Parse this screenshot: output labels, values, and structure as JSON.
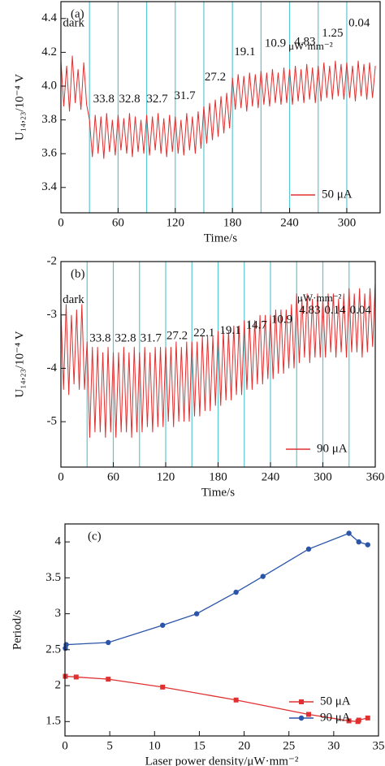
{
  "chart_data": [
    {
      "type": "line",
      "panel": "(a)",
      "xlabel": "Time/s",
      "ylabel": "U₁₄,₂₃/10⁻⁴ V",
      "xlim": [
        0,
        335
      ],
      "xticks": [
        0,
        60,
        120,
        180,
        240,
        300
      ],
      "ylim": [
        3.25,
        4.5
      ],
      "yticks": [
        {
          "value": 3.4,
          "label": "3.4"
        },
        {
          "value": 3.6,
          "label": "3.6"
        },
        {
          "value": 3.8,
          "label": "3.8"
        },
        {
          "value": 4.0,
          "label": "4.0"
        },
        {
          "value": 4.2,
          "label": "4.2"
        },
        {
          "value": 4.4,
          "label": "4.4"
        }
      ],
      "vlines": [
        30,
        60,
        90,
        120,
        150,
        180,
        210,
        240,
        270,
        300
      ],
      "vline_color": "#5bc8d0",
      "legend": "lower right",
      "x": [
        0,
        3,
        6,
        9,
        12,
        15,
        18,
        21,
        24,
        27,
        30,
        33,
        36,
        39,
        42,
        45,
        48,
        51,
        54,
        57,
        60,
        63,
        66,
        69,
        72,
        75,
        78,
        81,
        84,
        87,
        90,
        93,
        96,
        99,
        102,
        105,
        108,
        111,
        114,
        117,
        120,
        123,
        126,
        129,
        132,
        135,
        138,
        141,
        144,
        147,
        150,
        153,
        156,
        159,
        162,
        165,
        168,
        171,
        174,
        177,
        180,
        183,
        186,
        189,
        192,
        195,
        198,
        201,
        204,
        207,
        210,
        213,
        216,
        219,
        222,
        225,
        228,
        231,
        234,
        237,
        240,
        243,
        246,
        249,
        252,
        255,
        258,
        261,
        264,
        267,
        270,
        273,
        276,
        279,
        282,
        285,
        288,
        291,
        294,
        297,
        300,
        303,
        306,
        309,
        312,
        315,
        318,
        321,
        324,
        327,
        330
      ],
      "series": [
        {
          "name": "50 μA",
          "color": "#e03030",
          "values": [
            4.15,
            3.88,
            4.12,
            3.85,
            4.18,
            3.9,
            4.1,
            3.86,
            4.14,
            3.89,
            3.8,
            3.58,
            3.83,
            3.6,
            3.82,
            3.57,
            3.84,
            3.61,
            3.8,
            3.59,
            3.83,
            3.62,
            3.81,
            3.6,
            3.84,
            3.58,
            3.82,
            3.61,
            3.8,
            3.6,
            3.83,
            3.59,
            3.82,
            3.62,
            3.84,
            3.6,
            3.81,
            3.58,
            3.83,
            3.61,
            3.82,
            3.6,
            3.8,
            3.59,
            3.84,
            3.62,
            3.82,
            3.6,
            3.85,
            3.63,
            3.88,
            3.66,
            3.9,
            3.68,
            3.92,
            3.7,
            3.94,
            3.72,
            3.96,
            3.75,
            4.05,
            3.86,
            4.07,
            3.87,
            4.06,
            3.85,
            4.08,
            3.88,
            4.07,
            3.87,
            4.09,
            3.89,
            4.08,
            3.88,
            4.1,
            3.9,
            4.08,
            3.89,
            4.11,
            3.9,
            4.1,
            3.89,
            4.12,
            3.91,
            4.1,
            3.9,
            4.13,
            3.92,
            4.11,
            3.9,
            4.12,
            3.91,
            4.14,
            3.93,
            4.12,
            3.92,
            4.15,
            3.94,
            4.13,
            3.92,
            4.14,
            3.93,
            4.12,
            3.91,
            4.15,
            3.94,
            4.13,
            3.92,
            4.14,
            3.93,
            4.12
          ]
        }
      ],
      "annotations": [
        {
          "text": "dark",
          "x": 2,
          "y": 4.37
        },
        {
          "text": "33.8",
          "x": 45,
          "y": 3.92
        },
        {
          "text": "32.8",
          "x": 72,
          "y": 3.92
        },
        {
          "text": "32.7",
          "x": 101,
          "y": 3.92
        },
        {
          "text": "31.7",
          "x": 130,
          "y": 3.94
        },
        {
          "text": "27.2",
          "x": 162,
          "y": 4.05
        },
        {
          "text": "19.1",
          "x": 193,
          "y": 4.2
        },
        {
          "text": "10.9",
          "x": 225,
          "y": 4.25
        },
        {
          "text": "4.83",
          "x": 256,
          "y": 4.26
        },
        {
          "text": "1.25",
          "x": 285,
          "y": 4.31
        },
        {
          "text": "0.04",
          "x": 313,
          "y": 4.37
        },
        {
          "text": "μW·mm⁻²",
          "x": 262,
          "y": 4.23
        }
      ]
    },
    {
      "type": "line",
      "panel": "(b)",
      "xlabel": "Time/s",
      "ylabel": "U₁₄,₂₃/10⁻⁴ V",
      "xlim": [
        0,
        360
      ],
      "xticks": [
        0,
        60,
        120,
        180,
        240,
        300,
        360
      ],
      "ylim": [
        -5.85,
        -2
      ],
      "yticks": [
        -5,
        -4,
        -3,
        -2
      ],
      "vlines": [
        30,
        60,
        90,
        120,
        150,
        180,
        210,
        240,
        270,
        300,
        330
      ],
      "vline_color": "#5bc8d0",
      "legend": "lower right",
      "x": [
        0,
        3,
        6,
        9,
        12,
        15,
        18,
        21,
        24,
        27,
        30,
        33,
        36,
        39,
        42,
        45,
        48,
        51,
        54,
        57,
        60,
        63,
        66,
        69,
        72,
        75,
        78,
        81,
        84,
        87,
        90,
        93,
        96,
        99,
        102,
        105,
        108,
        111,
        114,
        117,
        120,
        123,
        126,
        129,
        132,
        135,
        138,
        141,
        144,
        147,
        150,
        153,
        156,
        159,
        162,
        165,
        168,
        171,
        174,
        177,
        180,
        183,
        186,
        189,
        192,
        195,
        198,
        201,
        204,
        207,
        210,
        213,
        216,
        219,
        222,
        225,
        228,
        231,
        234,
        237,
        240,
        243,
        246,
        249,
        252,
        255,
        258,
        261,
        264,
        267,
        270,
        273,
        276,
        279,
        282,
        285,
        288,
        291,
        294,
        297,
        300,
        303,
        306,
        309,
        312,
        315,
        318,
        321,
        324,
        327,
        330,
        333,
        336,
        339,
        342,
        345,
        348,
        351,
        354,
        357,
        360
      ],
      "series": [
        {
          "name": "90 μA",
          "color": "#e03030",
          "values": [
            -2.9,
            -4.4,
            -2.8,
            -4.5,
            -3.0,
            -4.3,
            -2.9,
            -4.4,
            -2.8,
            -4.4,
            -3.5,
            -5.3,
            -3.6,
            -5.2,
            -3.6,
            -5.2,
            -3.7,
            -5.3,
            -3.6,
            -5.2,
            -3.7,
            -5.3,
            -3.7,
            -5.2,
            -3.6,
            -5.2,
            -3.7,
            -5.3,
            -3.6,
            -5.2,
            -3.7,
            -5.2,
            -3.6,
            -5.1,
            -3.7,
            -5.2,
            -3.6,
            -5.1,
            -3.6,
            -5.1,
            -3.6,
            -5.0,
            -3.6,
            -5.1,
            -3.5,
            -5.0,
            -3.6,
            -5.0,
            -3.5,
            -5.0,
            -3.5,
            -4.9,
            -3.5,
            -4.9,
            -3.4,
            -4.8,
            -3.4,
            -4.8,
            -3.4,
            -4.7,
            -3.3,
            -4.7,
            -3.3,
            -4.6,
            -3.3,
            -4.6,
            -3.2,
            -4.5,
            -3.2,
            -4.5,
            -3.1,
            -4.4,
            -3.1,
            -4.4,
            -3.1,
            -4.3,
            -3.0,
            -4.3,
            -3.0,
            -4.2,
            -3.0,
            -4.2,
            -2.9,
            -4.1,
            -2.9,
            -4.1,
            -2.9,
            -4.0,
            -2.8,
            -4.0,
            -2.6,
            -3.9,
            -2.7,
            -3.8,
            -2.6,
            -3.9,
            -2.7,
            -3.8,
            -2.6,
            -3.8,
            -2.7,
            -3.8,
            -2.6,
            -3.7,
            -2.6,
            -3.8,
            -2.7,
            -3.7,
            -2.6,
            -3.8,
            -2.5,
            -3.7,
            -2.6,
            -3.7,
            -2.5,
            -3.8,
            -2.6,
            -3.7,
            -2.5,
            -3.6,
            -2.4
          ]
        }
      ],
      "annotations": [
        {
          "text": "dark",
          "x": 2,
          "y": -2.72
        },
        {
          "text": "33.8",
          "x": 45,
          "y": -3.45
        },
        {
          "text": "32.8",
          "x": 74,
          "y": -3.45
        },
        {
          "text": "31.7",
          "x": 103,
          "y": -3.45
        },
        {
          "text": "27.2",
          "x": 133,
          "y": -3.4
        },
        {
          "text": "22.1",
          "x": 164,
          "y": -3.35
        },
        {
          "text": "19.1",
          "x": 194,
          "y": -3.3
        },
        {
          "text": "14.7",
          "x": 224,
          "y": -3.2
        },
        {
          "text": "10.9",
          "x": 253,
          "y": -3.1
        },
        {
          "text": "4.83",
          "x": 285,
          "y": -2.92
        },
        {
          "text": "0.14",
          "x": 314,
          "y": -2.92
        },
        {
          "text": "0.04",
          "x": 343,
          "y": -2.92
        },
        {
          "text": "μW·mm⁻²",
          "x": 296,
          "y": -2.7
        }
      ]
    },
    {
      "type": "line",
      "panel": "(c)",
      "xlabel": "Laser power density/μW·mm⁻²",
      "ylabel": "Period/s",
      "markers": true,
      "xlim": [
        0,
        35
      ],
      "xticks": [
        0,
        5,
        10,
        15,
        20,
        25,
        30,
        35
      ],
      "ylim": [
        1.3,
        4.25
      ],
      "yticks": [
        1.5,
        2.0,
        2.5,
        3.0,
        3.5,
        4.0
      ],
      "legend": "lower right",
      "series": [
        {
          "name": "50 μA",
          "color": "#e03030",
          "marker": "square",
          "x": [
            0.04,
            1.25,
            4.83,
            10.9,
            19.1,
            27.2,
            31.7,
            32.7,
            32.8,
            33.8
          ],
          "values": [
            2.13,
            2.12,
            2.09,
            1.98,
            1.8,
            1.6,
            1.51,
            1.5,
            1.52,
            1.55
          ]
        },
        {
          "name": "90 μA",
          "color": "#2a55a8",
          "marker": "circle",
          "x": [
            0.04,
            0.14,
            4.83,
            10.9,
            14.7,
            19.1,
            22.1,
            27.2,
            31.7,
            32.8,
            33.8
          ],
          "values": [
            2.52,
            2.57,
            2.6,
            2.84,
            3.0,
            3.3,
            3.52,
            3.9,
            4.12,
            4.0,
            3.96
          ]
        }
      ]
    }
  ]
}
